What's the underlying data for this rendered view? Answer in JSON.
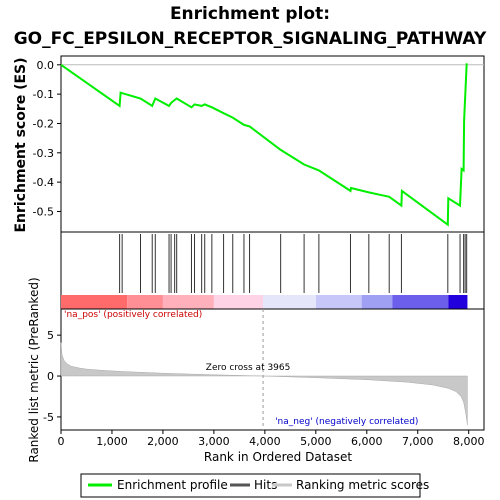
{
  "chart_data": {
    "type": "line",
    "title_line1": "Enrichment plot:",
    "title_line2": "GO_FC_EPSILON_RECEPTOR_SIGNALING_PATHWAY",
    "top_panel": {
      "ylabel": "Enrichment score (ES)",
      "ylim": [
        -0.57,
        0.03
      ],
      "yticks": [
        0.0,
        -0.1,
        -0.2,
        -0.3,
        -0.4,
        -0.5
      ],
      "ytick_labels": [
        "0.0",
        "-0.1",
        "-0.2",
        "-0.3",
        "-0.4",
        "-0.5"
      ],
      "series": [
        {
          "name": "Enrichment profile",
          "color": "#00ee00",
          "x": [
            0,
            1150,
            1170,
            1560,
            1790,
            1850,
            2120,
            2160,
            2230,
            2270,
            2560,
            2620,
            2760,
            2820,
            2960,
            3190,
            3370,
            3590,
            3700,
            4310,
            4770,
            5060,
            5680,
            5690,
            6040,
            6440,
            6680,
            6690,
            7590,
            7600,
            7830,
            7860,
            7900,
            7910,
            7960
          ],
          "y": [
            0.0,
            -0.14,
            -0.095,
            -0.115,
            -0.14,
            -0.115,
            -0.14,
            -0.13,
            -0.12,
            -0.115,
            -0.145,
            -0.135,
            -0.14,
            -0.135,
            -0.145,
            -0.165,
            -0.18,
            -0.205,
            -0.21,
            -0.29,
            -0.34,
            -0.36,
            -0.43,
            -0.42,
            -0.435,
            -0.45,
            -0.48,
            -0.43,
            -0.545,
            -0.455,
            -0.48,
            -0.355,
            -0.36,
            -0.19,
            0.005
          ]
        }
      ]
    },
    "hits_panel": {
      "legend_label": "Hits",
      "positions": [
        1150,
        1200,
        1560,
        1790,
        1850,
        2120,
        2160,
        2230,
        2270,
        2560,
        2620,
        2760,
        2820,
        2960,
        3190,
        3370,
        3590,
        3700,
        4310,
        4770,
        5060,
        5680,
        6040,
        6440,
        6680,
        7590,
        7830,
        7900,
        7930,
        7960
      ]
    },
    "color_bar": {
      "zones": [
        {
          "from": 0,
          "to": 1300,
          "color": "#ff6b6b"
        },
        {
          "from": 1300,
          "to": 2000,
          "color": "#ff8e95"
        },
        {
          "from": 2000,
          "to": 3000,
          "color": "#ffb0ba"
        },
        {
          "from": 3000,
          "to": 3965,
          "color": "#ffd3e6"
        },
        {
          "from": 3965,
          "to": 5000,
          "color": "#e6e6fa"
        },
        {
          "from": 5000,
          "to": 5900,
          "color": "#c7c7fa"
        },
        {
          "from": 5900,
          "to": 6500,
          "color": "#9f9ff4"
        },
        {
          "from": 6500,
          "to": 7600,
          "color": "#6b5fec"
        },
        {
          "from": 7600,
          "to": 7975,
          "color": "#2200dd"
        }
      ]
    },
    "bottom_panel": {
      "ylabel": "Ranked list metric (PreRanked)",
      "xlabel": "Rank in Ordered Dataset",
      "ylim": [
        -6.6,
        8.2
      ],
      "yticks": [
        5,
        0,
        -5
      ],
      "ytick_labels": [
        "5",
        "0",
        "-5"
      ],
      "xlim": [
        0,
        8300
      ],
      "xticks": [
        0,
        1000,
        2000,
        3000,
        4000,
        5000,
        6000,
        7000,
        8000
      ],
      "xtick_labels": [
        "0",
        "1,000",
        "2,000",
        "3,000",
        "4,000",
        "5,000",
        "6,000",
        "7,000",
        "8,000"
      ],
      "metric_curve": {
        "x": [
          0,
          20,
          60,
          120,
          200,
          350,
          500,
          800,
          1200,
          2000,
          3000,
          3965,
          5000,
          6000,
          6800,
          7300,
          7600,
          7750,
          7850,
          7900,
          7940,
          7975
        ],
        "y": [
          4.1,
          2.6,
          1.9,
          1.5,
          1.2,
          1.0,
          0.85,
          0.7,
          0.55,
          0.35,
          0.15,
          0.0,
          -0.2,
          -0.45,
          -0.75,
          -1.1,
          -1.5,
          -1.9,
          -2.5,
          -3.2,
          -4.5,
          -6.0
        ]
      },
      "pos_label": "'na_pos' (positively correlated)",
      "neg_label": "'na_neg' (negatively correlated)",
      "zero_cross_label": "Zero cross at 3965",
      "zero_cross": 3965
    },
    "legend": [
      {
        "label": "Enrichment profile",
        "color": "#00ee00"
      },
      {
        "label": "Hits",
        "color": "#555555"
      },
      {
        "label": "Ranking metric scores",
        "color": "#c8c8c8"
      }
    ]
  }
}
